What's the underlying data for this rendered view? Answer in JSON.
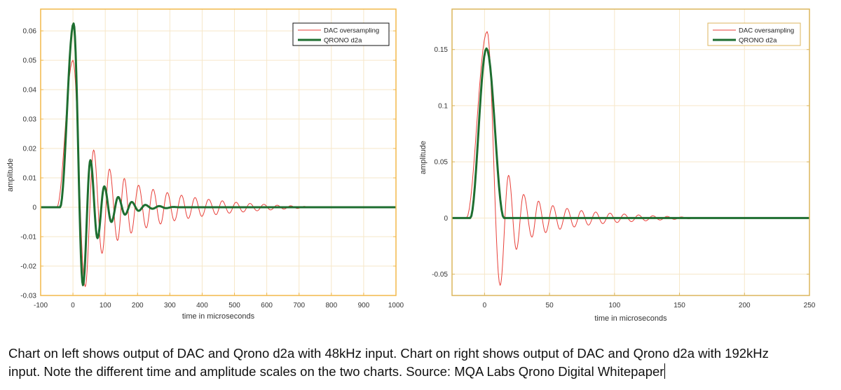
{
  "caption": {
    "line1": "Chart on left shows output of DAC and Qrono d2a with 48kHz input. Chart on right shows output of DAC and Qrono d2a with 192kHz",
    "line2": "input. Note the different time and amplitude scales on the two charts. Source: MQA Labs Qrono Digital Whitepaper"
  },
  "colors": {
    "dac": "#e8403a",
    "qrono": "#1e6e30",
    "frame_left": "#f2b84a",
    "frame_right": "#dcb65c",
    "grid": "#f6e7c9"
  },
  "chart_data": [
    {
      "type": "line",
      "xlabel": "time in microseconds",
      "ylabel": "amplitude",
      "xlim": [
        -100,
        1000
      ],
      "ylim": [
        -0.03,
        0.0674
      ],
      "xticks": [
        "-100",
        "0",
        "100",
        "200",
        "300",
        "400",
        "500",
        "600",
        "700",
        "800",
        "900",
        "1000"
      ],
      "xtick_values": [
        -100,
        0,
        100,
        200,
        300,
        400,
        500,
        600,
        700,
        800,
        900,
        1000
      ],
      "yticks": [
        "0.06",
        "0.05",
        "0.04",
        "0.03",
        "0.02",
        "0.01",
        "0",
        "-0.01",
        "-0.02",
        "-0.03"
      ],
      "ytick_values": [
        0.06,
        0.05,
        0.04,
        0.03,
        0.02,
        0.01,
        0,
        -0.01,
        -0.02,
        -0.03
      ],
      "grid": true,
      "legend_position": "top-right",
      "series": [
        {
          "name": "DAC oversampling",
          "style": "thin",
          "points": [
            [
              -100,
              0
            ],
            [
              -50,
              0
            ],
            [
              0,
              0.05
            ],
            [
              38,
              -0.027
            ],
            [
              64,
              0.0195
            ],
            [
              90,
              -0.0157
            ],
            [
              113,
              0.013
            ],
            [
              138,
              -0.0113
            ],
            [
              159,
              0.0098
            ],
            [
              180,
              -0.0088
            ],
            [
              203,
              0.0075
            ],
            [
              227,
              -0.007
            ],
            [
              248,
              0.0061
            ],
            [
              271,
              -0.0057
            ],
            [
              292,
              0.005
            ],
            [
              314,
              -0.0046
            ],
            [
              336,
              0.0041
            ],
            [
              357,
              -0.0038
            ],
            [
              378,
              0.0033
            ],
            [
              399,
              -0.0031
            ],
            [
              420,
              0.0027
            ],
            [
              443,
              -0.0025
            ],
            [
              462,
              0.0022
            ],
            [
              484,
              -0.002
            ],
            [
              505,
              0.0017
            ],
            [
              527,
              -0.0016
            ],
            [
              548,
              0.0013
            ],
            [
              570,
              -0.0012
            ],
            [
              591,
              0.001
            ],
            [
              612,
              -0.0009
            ],
            [
              632,
              0.0007
            ],
            [
              653,
              -0.0006
            ],
            [
              674,
              0.0005
            ],
            [
              695,
              -0.0004
            ],
            [
              716,
              0.0003
            ],
            [
              737,
              -0.0002
            ],
            [
              760,
              0.0001
            ],
            [
              780,
              0
            ],
            [
              1000,
              0
            ]
          ]
        },
        {
          "name": "QRONO d2a",
          "style": "thick",
          "points": [
            [
              -100,
              0
            ],
            [
              -40,
              0
            ],
            [
              2,
              0.0625
            ],
            [
              31,
              -0.0265
            ],
            [
              54,
              0.016
            ],
            [
              76,
              -0.0105
            ],
            [
              97,
              0.0071
            ],
            [
              119,
              -0.005
            ],
            [
              140,
              0.0035
            ],
            [
              161,
              -0.0025
            ],
            [
              182,
              0.0018
            ],
            [
              203,
              -0.0012
            ],
            [
              224,
              0.0008
            ],
            [
              246,
              -0.0005
            ],
            [
              267,
              0.0004
            ],
            [
              288,
              -0.0003
            ],
            [
              310,
              0.0001
            ],
            [
              330,
              0
            ],
            [
              1000,
              0
            ]
          ]
        }
      ]
    },
    {
      "type": "line",
      "xlabel": "time in microseconds",
      "ylabel": "amplitude",
      "xlim": [
        -25,
        250
      ],
      "ylim": [
        -0.069,
        0.186
      ],
      "xticks": [
        "0",
        "50",
        "100",
        "150",
        "200",
        "250"
      ],
      "xtick_values": [
        0,
        50,
        100,
        150,
        200,
        250
      ],
      "yticks": [
        "0.15",
        "0.1",
        "0.05",
        "0",
        "-0.05"
      ],
      "ytick_values": [
        0.15,
        0.1,
        0.05,
        0,
        -0.05
      ],
      "grid": true,
      "legend_position": "top-right",
      "series": [
        {
          "name": "DAC oversampling",
          "style": "thin",
          "points": [
            [
              -25,
              0
            ],
            [
              -14,
              0
            ],
            [
              2,
              0.166
            ],
            [
              12,
              -0.06
            ],
            [
              18.5,
              0.038
            ],
            [
              24.5,
              -0.028
            ],
            [
              30,
              0.021
            ],
            [
              36.5,
              -0.017
            ],
            [
              41.5,
              0.015
            ],
            [
              47,
              -0.013
            ],
            [
              52.5,
              0.011
            ],
            [
              58,
              -0.01
            ],
            [
              63.5,
              0.0085
            ],
            [
              69,
              -0.008
            ],
            [
              74.5,
              0.0066
            ],
            [
              80,
              -0.0063
            ],
            [
              85.5,
              0.0053
            ],
            [
              91,
              -0.005
            ],
            [
              96.5,
              0.0043
            ],
            [
              102,
              -0.004
            ],
            [
              107.5,
              0.0035
            ],
            [
              113,
              -0.0032
            ],
            [
              118.5,
              0.0027
            ],
            [
              124,
              -0.0025
            ],
            [
              129.5,
              0.002
            ],
            [
              135,
              -0.0018
            ],
            [
              140.5,
              0.0014
            ],
            [
              146,
              -0.0012
            ],
            [
              151.5,
              0.0009
            ],
            [
              157,
              -0.0007
            ],
            [
              162.5,
              0.0004
            ],
            [
              172,
              0
            ],
            [
              250,
              0
            ]
          ]
        },
        {
          "name": "QRONO d2a",
          "style": "thick",
          "points": [
            [
              -25,
              0
            ],
            [
              -11,
              0
            ],
            [
              1.5,
              0.151
            ],
            [
              15,
              0
            ],
            [
              250,
              0
            ]
          ]
        }
      ]
    }
  ]
}
